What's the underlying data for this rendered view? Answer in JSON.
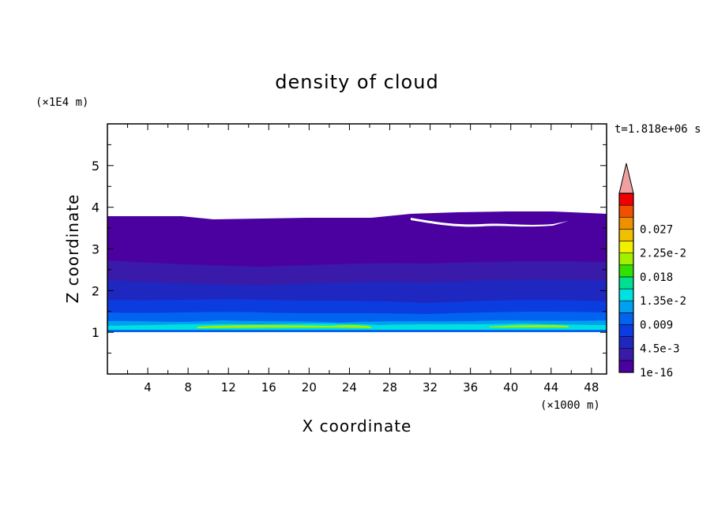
{
  "chart_data": {
    "type": "contour",
    "title": "density of cloud",
    "xlabel": "X coordinate",
    "ylabel": "Z coordinate",
    "x_unit": "(×1000 m)",
    "y_unit": "(×1E4 m)",
    "time_label": "t=1.818e+06 s",
    "xlim": [
      0,
      49.5
    ],
    "ylim": [
      0,
      6
    ],
    "x_ticks": [
      4,
      8,
      12,
      16,
      20,
      24,
      28,
      32,
      36,
      40,
      44,
      48
    ],
    "y_ticks": [
      1,
      2,
      3,
      4,
      5
    ],
    "colorbar": {
      "levels": [
        "0.027",
        "2.25e-2",
        "0.018",
        "1.35e-2",
        "0.009",
        "4.5e-3",
        "1e-16"
      ],
      "colors": [
        "#4b00a0",
        "#3a1aa8",
        "#1e28c0",
        "#0a3ce0",
        "#0064f0",
        "#00a0f0",
        "#00e0e0",
        "#00e090",
        "#30e000",
        "#a0f000",
        "#f0f000",
        "#f0c000",
        "#f09000",
        "#f05000",
        "#f00000",
        "#f0a0a0"
      ],
      "extend_max": true
    },
    "layers": [
      {
        "z_bottom": 1.0,
        "z_top": 1.1,
        "level": "1.35e-2"
      },
      {
        "z_bottom": 1.1,
        "z_top": 1.6,
        "level": "0.009"
      },
      {
        "z_bottom": 1.6,
        "z_top": 2.6,
        "level": "4.5e-3"
      },
      {
        "z_bottom": 2.6,
        "z_top": 3.8,
        "level": "1e-16"
      }
    ]
  }
}
